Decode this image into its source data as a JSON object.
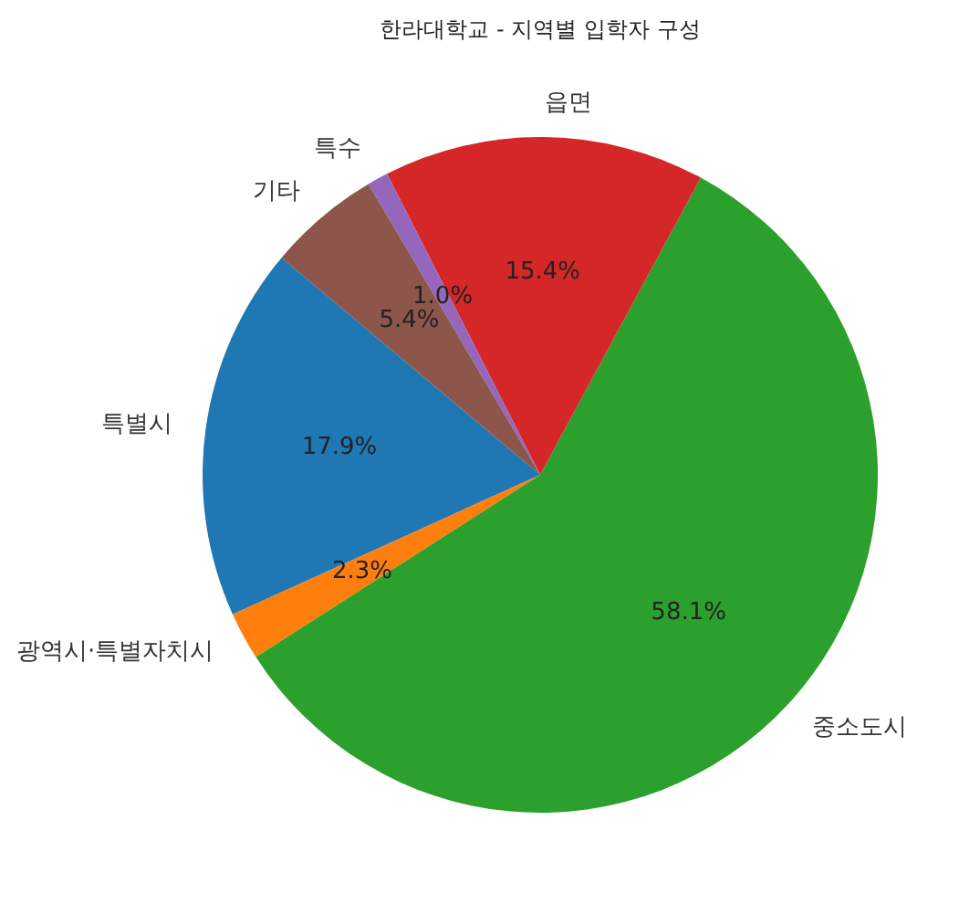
{
  "chart_data": {
    "type": "pie",
    "title": "한라대학교 - 지역별 입학자 구성",
    "categories": [
      "특별시",
      "광역시·특별자치시",
      "중소도시",
      "읍면",
      "특수",
      "기타"
    ],
    "values": [
      17.9,
      2.3,
      58.1,
      15.4,
      1.0,
      5.4
    ],
    "colors": [
      "#1f77b4",
      "#ff7f0e",
      "#2ca02c",
      "#d62728",
      "#9467bd",
      "#8c564b"
    ],
    "value_labels": [
      "17.9%",
      "2.3%",
      "58.1%",
      "15.4%",
      "1.0%",
      "5.4%"
    ]
  }
}
